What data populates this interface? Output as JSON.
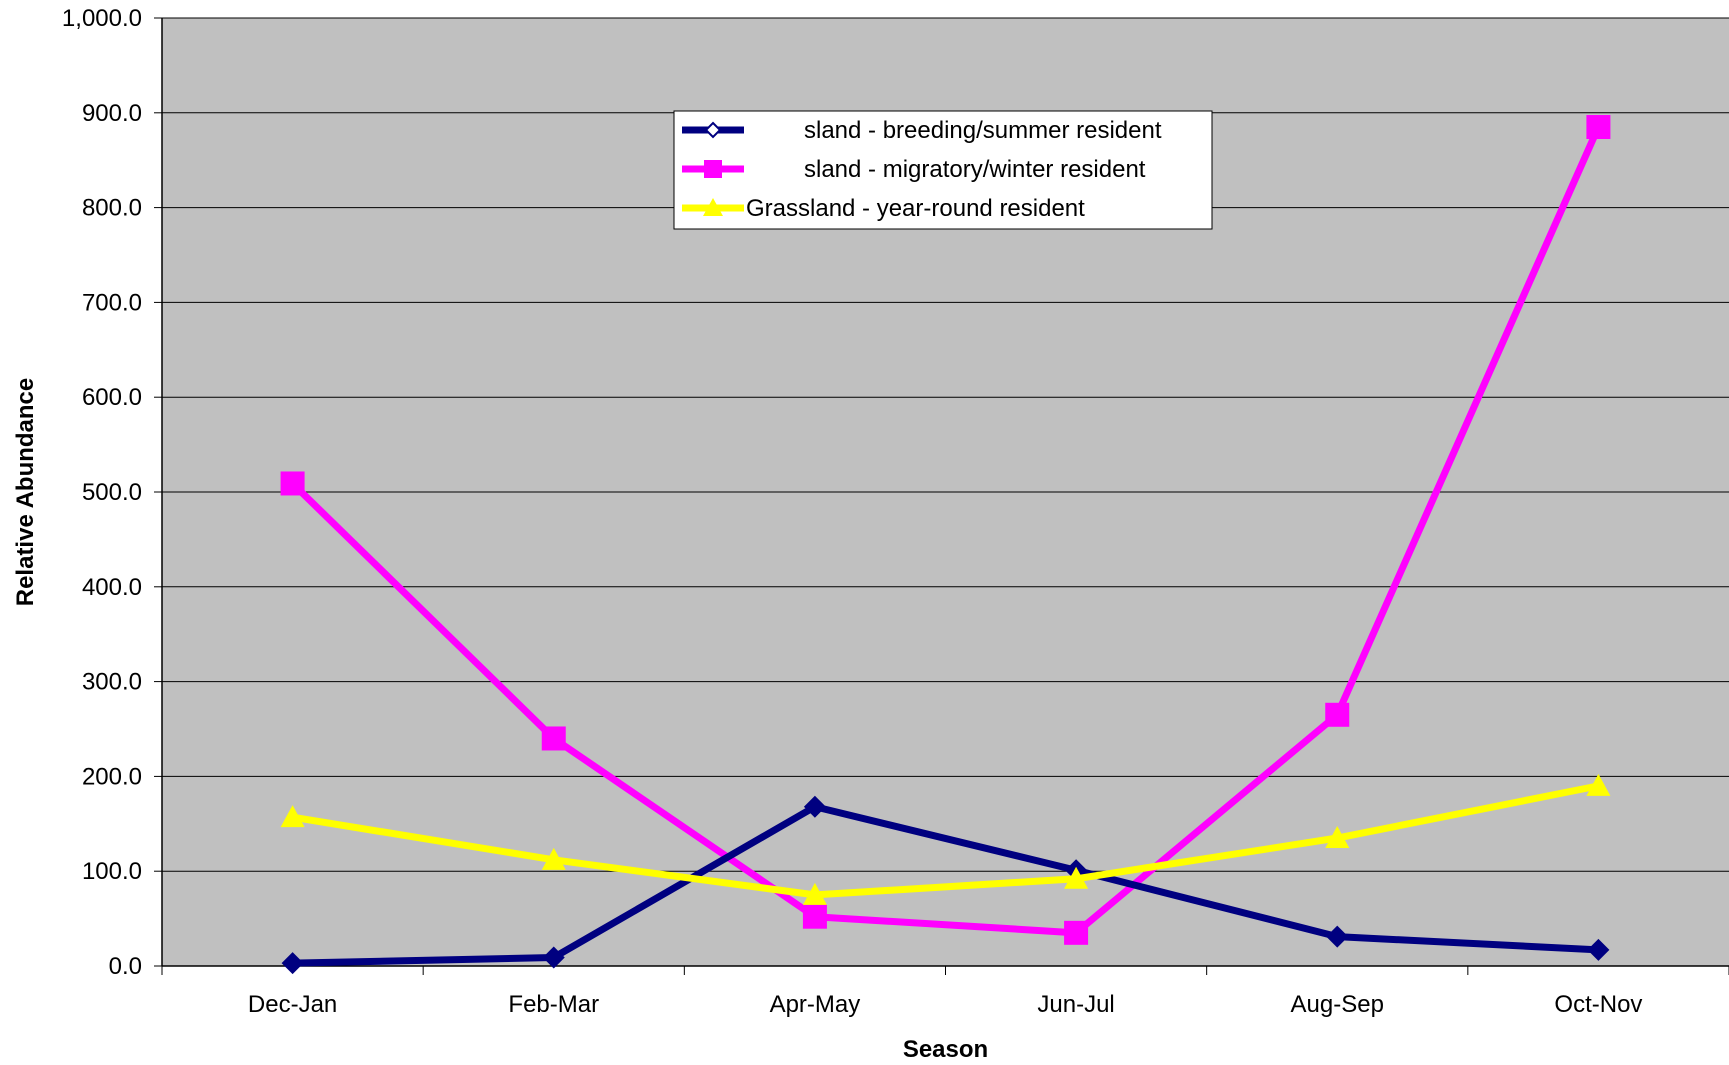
{
  "chart_data": {
    "type": "line",
    "title": "",
    "xlabel": "Season",
    "ylabel": "Relative Abundance",
    "categories": [
      "Dec-Jan",
      "Feb-Mar",
      "Apr-May",
      "Jun-Jul",
      "Aug-Sep",
      "Oct-Nov"
    ],
    "ylim": [
      0,
      1000
    ],
    "yticks": [
      0,
      100,
      200,
      300,
      400,
      500,
      600,
      700,
      800,
      900,
      1000
    ],
    "ytick_labels": [
      "0.0",
      "100.0",
      "200.0",
      "300.0",
      "400.0",
      "500.0",
      "600.0",
      "700.0",
      "800.0",
      "900.0",
      "1,000.0"
    ],
    "grid": true,
    "legend_position": "top-center",
    "plot_background": "#C0C0C0",
    "series": [
      {
        "name": "sland - breeding/summer resident",
        "color": "#000080",
        "marker": "diamond",
        "values": [
          3,
          9,
          168,
          101,
          31,
          17
        ]
      },
      {
        "name": "sland - migratory/winter resident",
        "color": "#FF00FF",
        "marker": "square",
        "values": [
          509,
          240,
          52,
          35,
          265,
          885
        ]
      },
      {
        "name": "Grassland - year-round resident",
        "color": "#FFFF00",
        "marker": "triangle",
        "values": [
          157,
          112,
          75,
          92,
          135,
          190
        ]
      }
    ]
  }
}
